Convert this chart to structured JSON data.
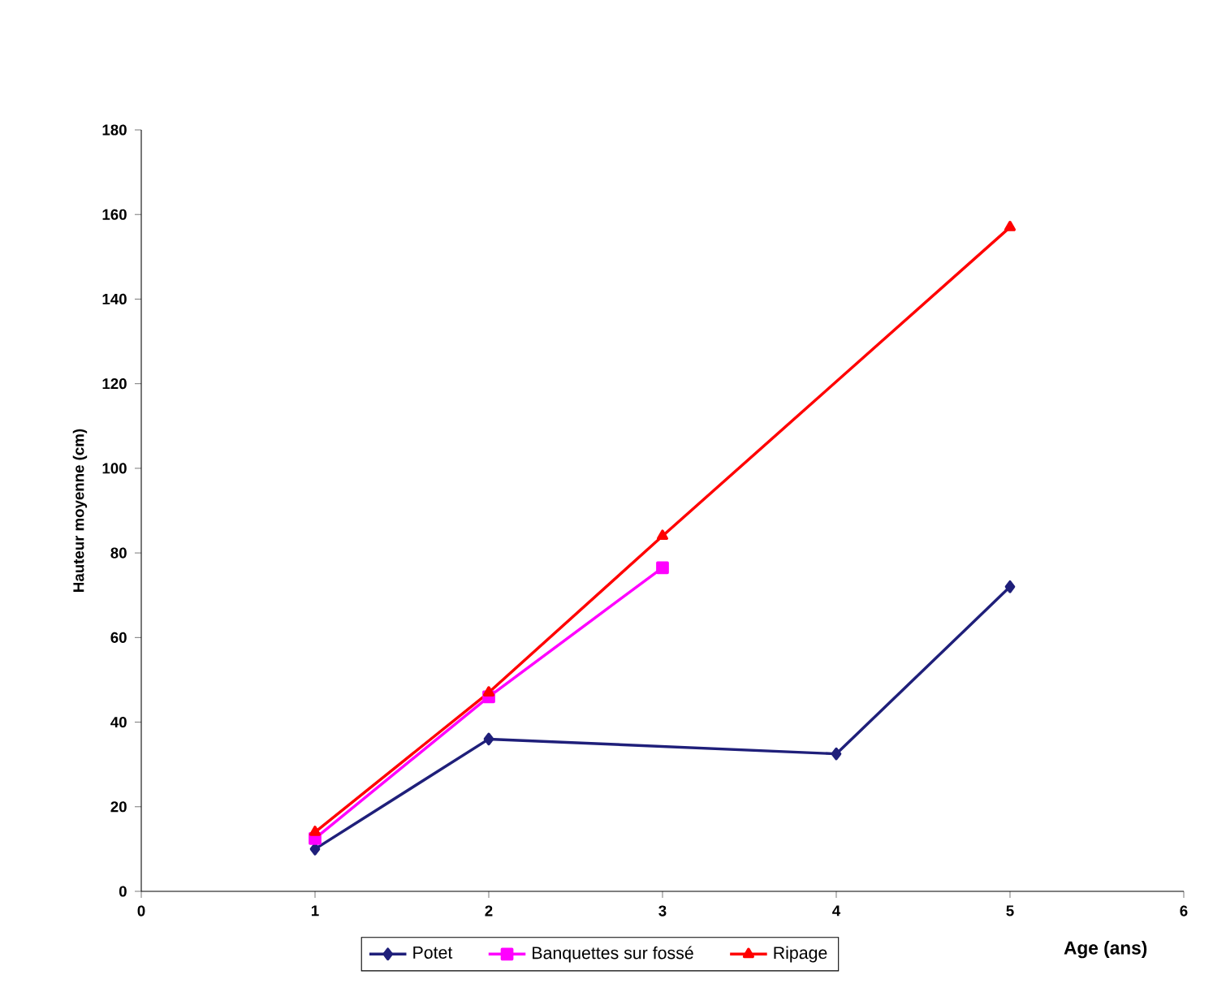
{
  "chart_data": {
    "type": "line",
    "xlabel": "Age (ans)",
    "ylabel": "Hauteur moyenne (cm)",
    "xlim": [
      0,
      6
    ],
    "xticks": [
      0,
      1,
      2,
      3,
      4,
      5,
      6
    ],
    "ylim": [
      0,
      180
    ],
    "yticks": [
      0,
      20,
      40,
      60,
      80,
      100,
      120,
      140,
      160,
      180
    ],
    "grid": false,
    "legend": "bottom",
    "series": [
      {
        "name": "Potet",
        "color": "#1f1f7a",
        "marker": "diamond",
        "x": [
          1,
          2,
          4,
          5
        ],
        "values": [
          10,
          36,
          32.5,
          72
        ]
      },
      {
        "name": "Banquettes sur fossé",
        "color": "#ff00ff",
        "marker": "square",
        "x": [
          1,
          2,
          3
        ],
        "values": [
          12.5,
          46,
          76.5
        ]
      },
      {
        "name": "Ripage",
        "color": "#ff0000",
        "marker": "triangle",
        "x": [
          1,
          2,
          3,
          5
        ],
        "values": [
          14,
          47,
          84,
          157
        ]
      }
    ]
  }
}
